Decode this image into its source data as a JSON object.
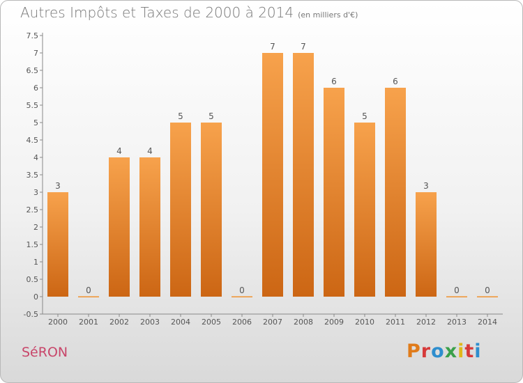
{
  "header": {
    "title": "Autres Impôts et Taxes de 2000 à 2014",
    "unit": "(en milliers d'€)"
  },
  "footer": {
    "commune": "SéRON",
    "logo": {
      "text": "Proxiti",
      "colors": [
        "#e07b1a",
        "#d63a3a",
        "#2e8ece",
        "#3aa04a",
        "#e0b81a",
        "#d63a3a",
        "#2e8ece"
      ]
    }
  },
  "chart_data": {
    "type": "bar",
    "categories": [
      "2000",
      "2001",
      "2002",
      "2003",
      "2004",
      "2005",
      "2006",
      "2007",
      "2008",
      "2009",
      "2010",
      "2011",
      "2012",
      "2013",
      "2014"
    ],
    "values": [
      3,
      0,
      4,
      4,
      5,
      5,
      0,
      7,
      7,
      6,
      5,
      6,
      3,
      0,
      0
    ],
    "value_labels": [
      "3",
      "0",
      "4",
      "4",
      "5",
      "5",
      "0",
      "7",
      "7",
      "6",
      "5",
      "6",
      "3",
      "0",
      "0"
    ],
    "yticks": [
      "-0.5",
      "0",
      "0.5",
      "1",
      "1.5",
      "2",
      "2.5",
      "3",
      "3.5",
      "4",
      "4.5",
      "5",
      "5.5",
      "6",
      "6.5",
      "7",
      "7.5"
    ],
    "ylim": [
      -0.5,
      7.5
    ],
    "title": "Autres Impôts et Taxes de 2000 à 2014",
    "xlabel": "",
    "ylabel": "",
    "grid": false,
    "bar_color": "#f0922f"
  }
}
